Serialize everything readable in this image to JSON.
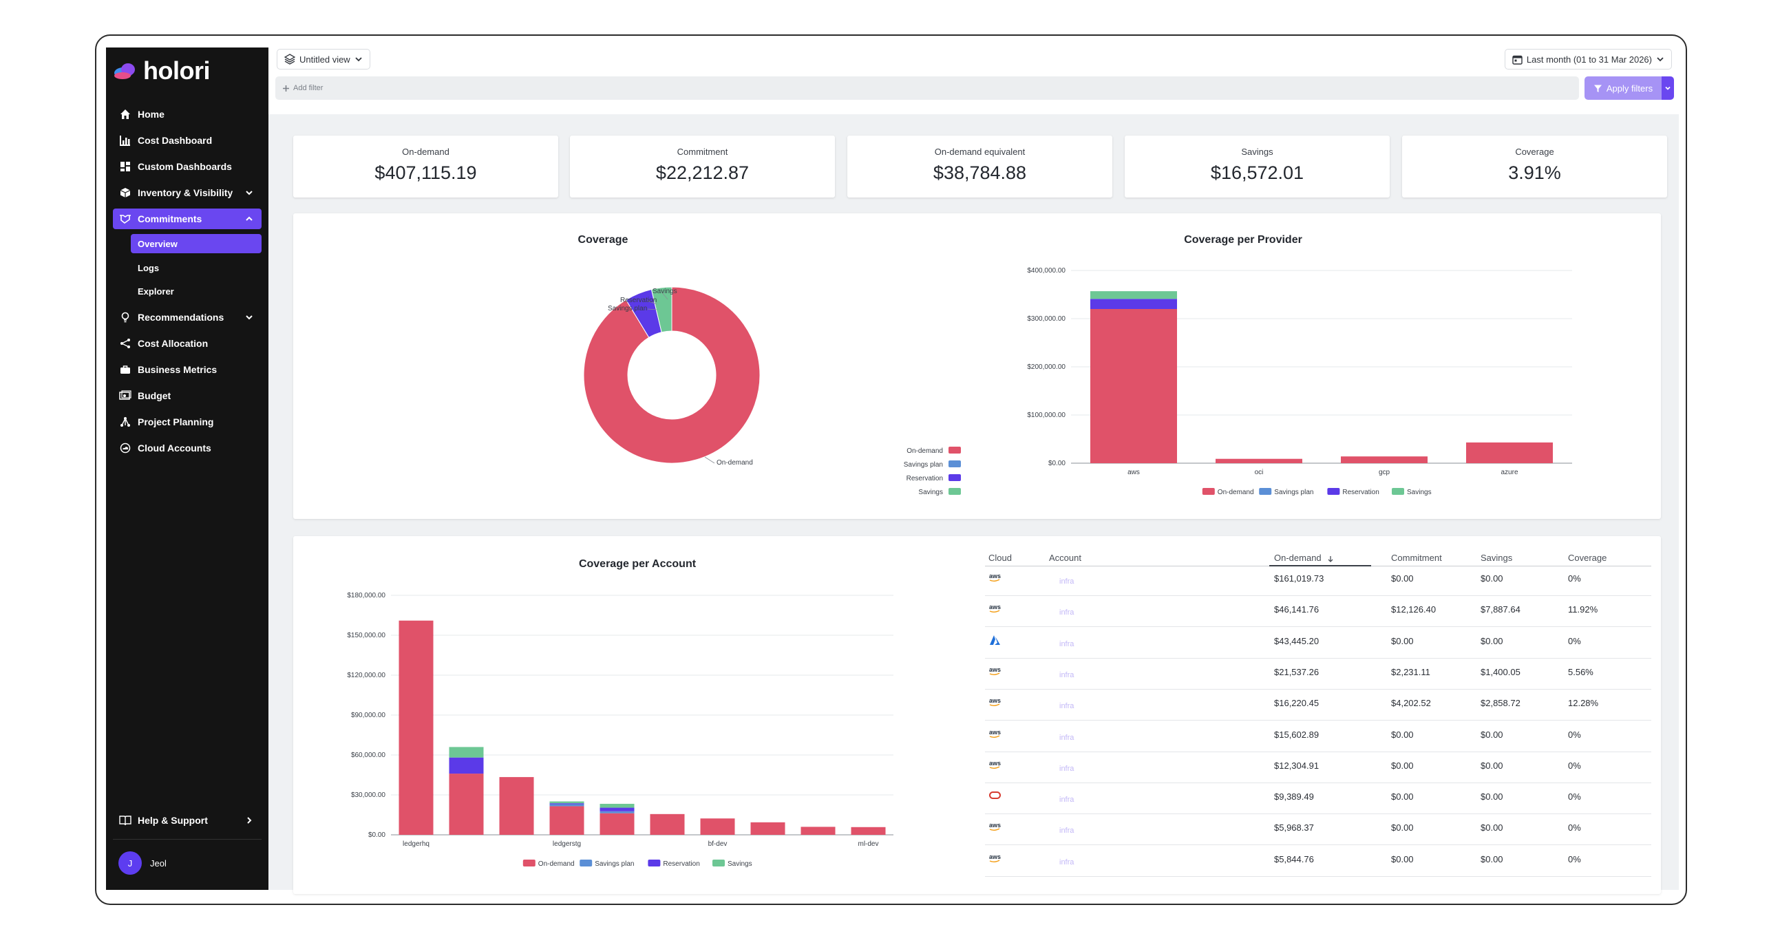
{
  "app": {
    "brand": "holori"
  },
  "sidebar": {
    "items": [
      {
        "label": "Home",
        "icon": "home-icon"
      },
      {
        "label": "Cost Dashboard",
        "icon": "bar-chart-icon"
      },
      {
        "label": "Custom Dashboards",
        "icon": "dashboard-grid-icon"
      },
      {
        "label": "Inventory & Visibility",
        "icon": "box-icon",
        "expandable": true
      },
      {
        "label": "Commitments",
        "icon": "handshake-icon",
        "expanded": true,
        "active": true
      },
      {
        "label": "Recommendations",
        "icon": "lightbulb-icon",
        "expandable": true
      },
      {
        "label": "Cost Allocation",
        "icon": "share-icon"
      },
      {
        "label": "Business Metrics",
        "icon": "briefcase-icon"
      },
      {
        "label": "Budget",
        "icon": "budget-icon"
      },
      {
        "label": "Project Planning",
        "icon": "hierarchy-icon"
      },
      {
        "label": "Cloud Accounts",
        "icon": "cloud-icon"
      }
    ],
    "sub_items": [
      {
        "label": "Overview",
        "active": true
      },
      {
        "label": "Logs"
      },
      {
        "label": "Explorer"
      }
    ],
    "help": "Help & Support",
    "user": {
      "initial": "J",
      "name": "Jeol"
    }
  },
  "topbar": {
    "view": "Untitled view",
    "date_range": "Last month (01 to 31 Mar 2026)",
    "filter_placeholder": "Add filter",
    "apply_label": "Apply filters"
  },
  "kpis": [
    {
      "label": "On-demand",
      "value": "$407,115.19"
    },
    {
      "label": "Commitment",
      "value": "$22,212.87"
    },
    {
      "label": "On-demand equivalent",
      "value": "$38,784.88"
    },
    {
      "label": "Savings",
      "value": "$16,572.01"
    },
    {
      "label": "Coverage",
      "value": "3.91%"
    }
  ],
  "colors": {
    "on_demand": "#e05269",
    "savings_plan": "#5b8fd6",
    "reservation": "#5b3ae8",
    "savings": "#6dc794",
    "accent": "#6a47f0"
  },
  "chart_data": [
    {
      "type": "pie",
      "title": "Coverage",
      "donut": true,
      "categories": [
        "On-demand",
        "Savings plan",
        "Reservation",
        "Savings"
      ],
      "values": [
        407115.19,
        0,
        22212.87,
        16572.01
      ],
      "slice_labels": [
        "Savings",
        "Reservation",
        "Savings plan",
        "On-demand"
      ],
      "legend": [
        "On-demand",
        "Savings plan",
        "Reservation",
        "Savings"
      ],
      "legend_position": "bottom-right"
    },
    {
      "type": "bar",
      "stacked": true,
      "title": "Coverage per Provider",
      "categories": [
        "aws",
        "oci",
        "gcp",
        "azure"
      ],
      "series": [
        {
          "name": "On-demand",
          "values": [
            320000,
            9000,
            14000,
            43000
          ]
        },
        {
          "name": "Savings plan",
          "values": [
            0,
            0,
            0,
            0
          ]
        },
        {
          "name": "Reservation",
          "values": [
            21000,
            0,
            0,
            0
          ]
        },
        {
          "name": "Savings",
          "values": [
            16000,
            0,
            0,
            0
          ]
        }
      ],
      "y_ticks": [
        "$0.00",
        "$100,000.00",
        "$200,000.00",
        "$300,000.00",
        "$400,000.00"
      ],
      "ylim": [
        0,
        400000
      ],
      "grid": true,
      "legend_position": "bottom"
    },
    {
      "type": "bar",
      "stacked": true,
      "title": "Coverage per Account",
      "x_tick_labels": [
        "ledgerhq",
        "",
        "",
        "ledgerstg",
        "",
        "",
        "bf-dev",
        "",
        "",
        "ml-dev"
      ],
      "series": [
        {
          "name": "On-demand",
          "values": [
            161000,
            46000,
            43400,
            21500,
            16200,
            15600,
            12300,
            9400,
            6000,
            5800
          ]
        },
        {
          "name": "Savings plan",
          "values": [
            0,
            0,
            0,
            1500,
            1500,
            0,
            0,
            0,
            0,
            0
          ]
        },
        {
          "name": "Reservation",
          "values": [
            0,
            12100,
            0,
            700,
            2700,
            0,
            0,
            0,
            0,
            0
          ]
        },
        {
          "name": "Savings",
          "values": [
            0,
            7900,
            0,
            1400,
            2900,
            0,
            0,
            0,
            0,
            0
          ]
        }
      ],
      "y_ticks": [
        "$0.00",
        "$30,000.00",
        "$60,000.00",
        "$90,000.00",
        "$120,000.00",
        "$150,000.00",
        "$180,000.00"
      ],
      "ylim": [
        0,
        180000
      ],
      "grid": true,
      "legend_position": "bottom"
    }
  ],
  "table": {
    "headers": [
      "Cloud",
      "Account",
      "On-demand",
      "Commitment",
      "Savings",
      "Coverage"
    ],
    "sorted_by": "On-demand",
    "rows": [
      {
        "cloud": "aws",
        "account": "infra",
        "on_demand": "$161,019.73",
        "commitment": "$0.00",
        "savings": "$0.00",
        "coverage": "0%"
      },
      {
        "cloud": "aws",
        "account": "infra",
        "on_demand": "$46,141.76",
        "commitment": "$12,126.40",
        "savings": "$7,887.64",
        "coverage": "11.92%"
      },
      {
        "cloud": "azure",
        "account": "infra",
        "on_demand": "$43,445.20",
        "commitment": "$0.00",
        "savings": "$0.00",
        "coverage": "0%"
      },
      {
        "cloud": "aws",
        "account": "infra",
        "on_demand": "$21,537.26",
        "commitment": "$2,231.11",
        "savings": "$1,400.05",
        "coverage": "5.56%"
      },
      {
        "cloud": "aws",
        "account": "infra",
        "on_demand": "$16,220.45",
        "commitment": "$4,202.52",
        "savings": "$2,858.72",
        "coverage": "12.28%"
      },
      {
        "cloud": "aws",
        "account": "infra",
        "on_demand": "$15,602.89",
        "commitment": "$0.00",
        "savings": "$0.00",
        "coverage": "0%"
      },
      {
        "cloud": "aws",
        "account": "infra",
        "on_demand": "$12,304.91",
        "commitment": "$0.00",
        "savings": "$0.00",
        "coverage": "0%"
      },
      {
        "cloud": "oci",
        "account": "infra",
        "on_demand": "$9,389.49",
        "commitment": "$0.00",
        "savings": "$0.00",
        "coverage": "0%"
      },
      {
        "cloud": "aws",
        "account": "infra",
        "on_demand": "$5,968.37",
        "commitment": "$0.00",
        "savings": "$0.00",
        "coverage": "0%"
      },
      {
        "cloud": "aws",
        "account": "infra",
        "on_demand": "$5,844.76",
        "commitment": "$0.00",
        "savings": "$0.00",
        "coverage": "0%"
      }
    ]
  }
}
